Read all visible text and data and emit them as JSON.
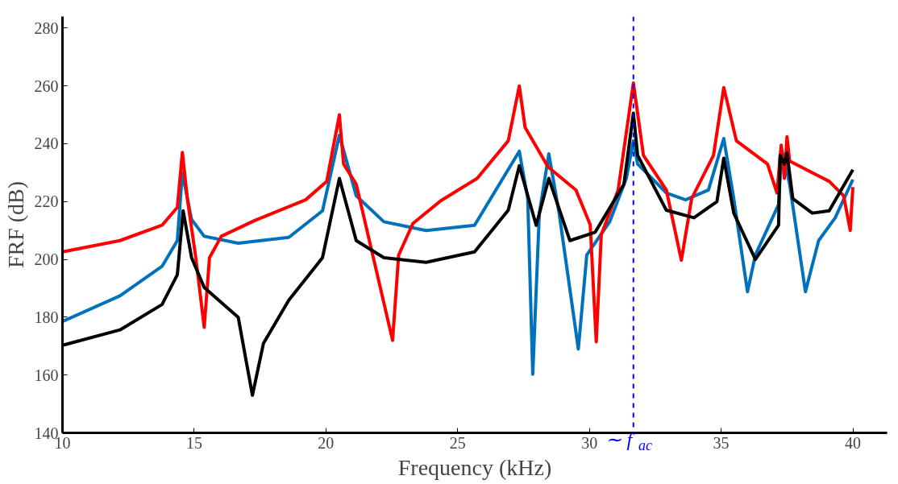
{
  "chart_data": {
    "type": "line",
    "xlabel": "Frequency (kHz)",
    "ylabel": "FRF (dB)",
    "xlim": [
      10,
      41.3
    ],
    "ylim": [
      140,
      284
    ],
    "xticks": [
      10,
      15,
      20,
      25,
      30,
      35,
      40
    ],
    "yticks": [
      140,
      160,
      180,
      200,
      220,
      240,
      260,
      280
    ],
    "grid": false,
    "line_style": "solid",
    "marker": "none",
    "ref_lines": [
      {
        "axis": "x",
        "value": 31.67,
        "label": "∼ f$_{ac}$",
        "color": "#0000ff",
        "line_style": "dashed"
      }
    ],
    "series": [
      {
        "color": "#0072bd",
        "x": [
          10,
          12.18,
          13.78,
          14.36,
          14.55,
          14.9,
          15.38,
          16.67,
          18.59,
          19.87,
          20.51,
          21.15,
          22.2,
          23.8,
          25.64,
          27.34,
          27.66,
          27.85,
          28.1,
          28.46,
          28.85,
          29.58,
          29.9,
          30.77,
          31.4,
          31.67,
          31.83,
          32.92,
          33.65,
          34.52,
          35.1,
          35.48,
          36,
          36.3,
          37.18,
          37.3,
          37.6,
          38.2,
          38.7,
          39.33,
          40
        ],
        "values": [
          178.5,
          187.4,
          197.6,
          206.5,
          230,
          213.8,
          208,
          205.6,
          207.6,
          216.8,
          243,
          222,
          213,
          210,
          211.8,
          237.4,
          221,
          160.3,
          216,
          236.5,
          216,
          169,
          201.5,
          213,
          228,
          241,
          233,
          223,
          220.6,
          224,
          241.8,
          221,
          188.8,
          201.5,
          219,
          238,
          226,
          188.8,
          206.5,
          214.4,
          227.6
        ]
      },
      {
        "color": "#ff0000",
        "x": [
          10,
          12.18,
          13.78,
          14.36,
          14.55,
          14.74,
          15.06,
          15.38,
          15.58,
          16.03,
          17.31,
          19.23,
          20.03,
          20.51,
          20.67,
          21.15,
          22.53,
          22.76,
          23.3,
          24.36,
          25.74,
          26.92,
          27.34,
          27.56,
          28.43,
          29.49,
          30.03,
          30.26,
          30.45,
          31.09,
          31.67,
          32.05,
          32.92,
          33.49,
          33.88,
          34.71,
          35.1,
          35.58,
          36.76,
          37.12,
          37.28,
          37.4,
          37.5,
          37.6,
          39.1,
          39.65,
          39.9,
          40
        ],
        "values": [
          202.6,
          206.5,
          211.8,
          218,
          237,
          221,
          200.6,
          176.5,
          200.6,
          208,
          213.5,
          220.6,
          227,
          250,
          233,
          226,
          172,
          201.5,
          212.4,
          220.3,
          228,
          241,
          260,
          245.6,
          232,
          224,
          212,
          171.5,
          208.5,
          224,
          261,
          236,
          224,
          199.7,
          221,
          236,
          259.4,
          241,
          233,
          223,
          239.5,
          228,
          242.4,
          234,
          227,
          222,
          210,
          225
        ]
      },
      {
        "color": "#000000",
        "x": [
          10,
          12.18,
          13.78,
          14.36,
          14.58,
          14.9,
          15.38,
          16.67,
          17.21,
          17.63,
          18.59,
          19.87,
          20.51,
          21.15,
          22.2,
          23.8,
          25.64,
          26.92,
          27.34,
          27.98,
          28.46,
          29.26,
          30.22,
          31.31,
          31.67,
          31.83,
          32.92,
          33.97,
          34.84,
          35.1,
          35.48,
          36.3,
          37.18,
          37.24,
          37.4,
          37.5,
          37.72,
          38.46,
          39.1,
          40
        ],
        "values": [
          170.3,
          175.6,
          184.4,
          194.7,
          216.8,
          200.6,
          190.3,
          180,
          153,
          171,
          185.9,
          200.6,
          228,
          206.5,
          200.6,
          199,
          202.6,
          217,
          232.4,
          211.8,
          228,
          206.5,
          209.4,
          226,
          250.6,
          236,
          217,
          214.4,
          220,
          235,
          216,
          200,
          211.8,
          236,
          233,
          236.8,
          221,
          216,
          216.8,
          231
        ]
      }
    ]
  }
}
